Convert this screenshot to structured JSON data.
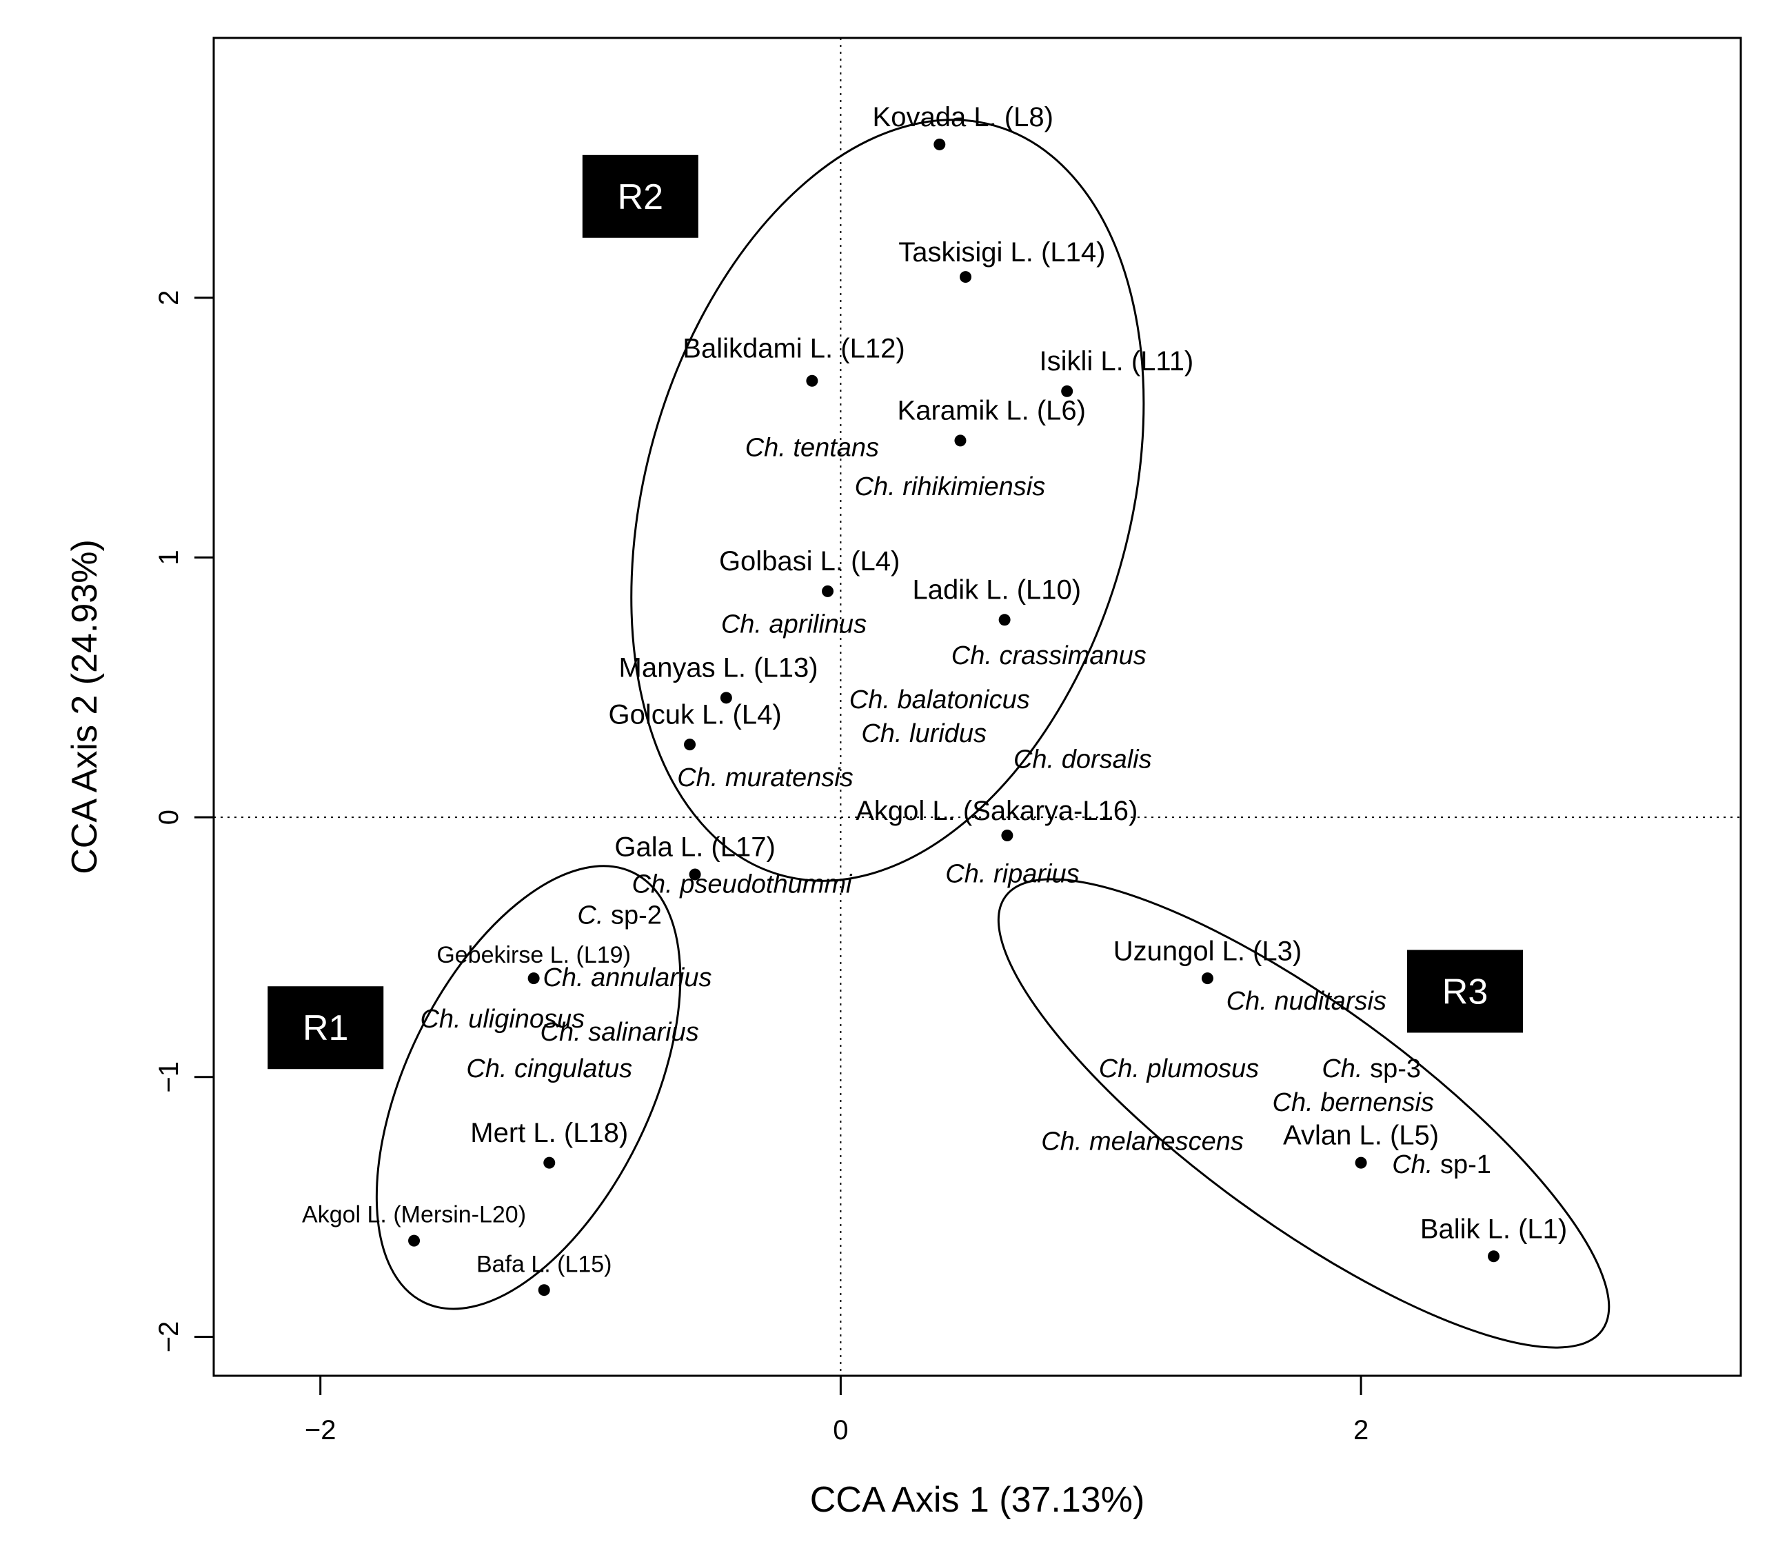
{
  "chart_data": {
    "type": "scatter",
    "xlabel": "CCA Axis 1 (37.13%)",
    "ylabel": "CCA Axis 2 (24.93%)",
    "xlim": [
      -2.41,
      3.46
    ],
    "ylim": [
      -2.15,
      3.0
    ],
    "x_ticks": [
      {
        "v": -2,
        "label": "−2"
      },
      {
        "v": 0,
        "label": "0"
      },
      {
        "v": 2,
        "label": "2"
      }
    ],
    "y_ticks": [
      {
        "v": -2,
        "label": "−2"
      },
      {
        "v": -1,
        "label": "−1"
      },
      {
        "v": 0,
        "label": "0"
      },
      {
        "v": 1,
        "label": "1"
      },
      {
        "v": 2,
        "label": "2"
      }
    ],
    "reference_lines": {
      "x": 0,
      "y": 0,
      "style": "dotted"
    },
    "grid": false,
    "sites": [
      {
        "label": "Kovada L. (L8)",
        "x": 0.38,
        "y": 2.59,
        "lx": 0.47,
        "ly": 2.66,
        "anchor": "middle",
        "small": false
      },
      {
        "label": "Taskisigi L. (L14)",
        "x": 0.48,
        "y": 2.08,
        "lx": 0.62,
        "ly": 2.14,
        "anchor": "middle",
        "small": false
      },
      {
        "label": "Balikdami L. (L12)",
        "x": -0.11,
        "y": 1.68,
        "lx": -0.18,
        "ly": 1.77,
        "anchor": "middle",
        "small": false
      },
      {
        "label": "Isikli L. (L11)",
        "x": 0.87,
        "y": 1.64,
        "lx": 1.06,
        "ly": 1.72,
        "anchor": "middle",
        "small": false
      },
      {
        "label": "Karamik L. (L6)",
        "x": 0.46,
        "y": 1.45,
        "lx": 0.58,
        "ly": 1.53,
        "anchor": "middle",
        "small": false
      },
      {
        "label": "Golbasi L. (L4)",
        "x": -0.05,
        "y": 0.87,
        "lx": -0.12,
        "ly": 0.95,
        "anchor": "middle",
        "small": false
      },
      {
        "label": "Ladik L. (L10)",
        "x": 0.63,
        "y": 0.76,
        "lx": 0.6,
        "ly": 0.84,
        "anchor": "middle",
        "small": false
      },
      {
        "label": "Manyas L. (L13)",
        "x": -0.44,
        "y": 0.46,
        "lx": -0.47,
        "ly": 0.54,
        "anchor": "middle",
        "small": false
      },
      {
        "label": "Golcuk L. (L4)",
        "x": -0.58,
        "y": 0.28,
        "lx": -0.56,
        "ly": 0.36,
        "anchor": "middle",
        "small": false
      },
      {
        "label": "Akgol L. (Sakarya-L16)",
        "x": 0.64,
        "y": -0.07,
        "lx": 0.6,
        "ly": -0.01,
        "anchor": "middle",
        "small": false
      },
      {
        "label": "Gala L. (L17)",
        "x": -0.56,
        "y": -0.22,
        "lx": -0.56,
        "ly": -0.15,
        "anchor": "middle",
        "small": false
      },
      {
        "label": "Uzungol L. (L3)",
        "x": 1.41,
        "y": -0.62,
        "lx": 1.41,
        "ly": -0.55,
        "anchor": "middle",
        "small": false
      },
      {
        "label": "Gebekirse L. (L19)",
        "x": -1.18,
        "y": -0.62,
        "lx": -1.18,
        "ly": -0.56,
        "anchor": "middle",
        "small": true
      },
      {
        "label": "Mert L. (L18)",
        "x": -1.12,
        "y": -1.33,
        "lx": -1.12,
        "ly": -1.25,
        "anchor": "middle",
        "small": false
      },
      {
        "label": "Avlan L. (L5)",
        "x": 2.0,
        "y": -1.33,
        "lx": 2.0,
        "ly": -1.26,
        "anchor": "middle",
        "small": false
      },
      {
        "label": "Akgol L. (Mersin-L20)",
        "x": -1.64,
        "y": -1.63,
        "lx": -1.64,
        "ly": -1.56,
        "anchor": "middle",
        "small": true
      },
      {
        "label": "Balik L. (L1)",
        "x": 2.51,
        "y": -1.69,
        "lx": 2.51,
        "ly": -1.62,
        "anchor": "middle",
        "small": false
      },
      {
        "label": "Bafa L. (L15)",
        "x": -1.14,
        "y": -1.82,
        "lx": -1.14,
        "ly": -1.75,
        "anchor": "middle",
        "small": true
      }
    ],
    "species": [
      {
        "genus": "Ch.",
        "epithet": "tentans",
        "italic_epithet": true,
        "x": -0.11,
        "y": 1.39
      },
      {
        "genus": "Ch.",
        "epithet": "rihikimiensis",
        "italic_epithet": true,
        "x": 0.42,
        "y": 1.24
      },
      {
        "genus": "Ch.",
        "epithet": "aprilinus",
        "italic_epithet": true,
        "x": -0.18,
        "y": 0.71
      },
      {
        "genus": "Ch.",
        "epithet": "crassimanus",
        "italic_epithet": true,
        "x": 0.8,
        "y": 0.59
      },
      {
        "genus": "Ch.",
        "epithet": "balatonicus",
        "italic_epithet": true,
        "x": 0.38,
        "y": 0.42
      },
      {
        "genus": "Ch.",
        "epithet": "luridus",
        "italic_epithet": true,
        "x": 0.32,
        "y": 0.29
      },
      {
        "genus": "Ch.",
        "epithet": "dorsalis",
        "italic_epithet": true,
        "x": 0.93,
        "y": 0.19
      },
      {
        "genus": "Ch.",
        "epithet": "muratensis",
        "italic_epithet": true,
        "x": -0.29,
        "y": 0.12
      },
      {
        "genus": "Ch.",
        "epithet": "riparius",
        "italic_epithet": true,
        "x": 0.66,
        "y": -0.25
      },
      {
        "genus": "Ch.",
        "epithet": "pseudothummi",
        "italic_epithet": true,
        "x": -0.38,
        "y": -0.29
      },
      {
        "genus": "C.",
        "epithet": "sp-2",
        "italic_epithet": false,
        "x": -0.85,
        "y": -0.41
      },
      {
        "genus": "Ch.",
        "epithet": "annularius",
        "italic_epithet": true,
        "x": -0.82,
        "y": -0.65
      },
      {
        "genus": "Ch.",
        "epithet": "nuditarsis",
        "italic_epithet": true,
        "x": 1.79,
        "y": -0.74
      },
      {
        "genus": "Ch.",
        "epithet": "uliginosus",
        "italic_epithet": true,
        "x": -1.3,
        "y": -0.81
      },
      {
        "genus": "Ch.",
        "epithet": "salinarius",
        "italic_epithet": true,
        "x": -0.85,
        "y": -0.86
      },
      {
        "genus": "Ch.",
        "epithet": "cingulatus",
        "italic_epithet": true,
        "x": -1.12,
        "y": -1.0
      },
      {
        "genus": "Ch.",
        "epithet": "plumosus",
        "italic_epithet": true,
        "x": 1.3,
        "y": -1.0
      },
      {
        "genus": "Ch.",
        "epithet": "sp-3",
        "italic_epithet": false,
        "x": 2.04,
        "y": -1.0
      },
      {
        "genus": "Ch.",
        "epithet": "bernensis",
        "italic_epithet": true,
        "x": 1.97,
        "y": -1.13
      },
      {
        "genus": "Ch.",
        "epithet": "melanescens",
        "italic_epithet": true,
        "x": 1.16,
        "y": -1.28
      },
      {
        "genus": "Ch.",
        "epithet": "sp-1",
        "italic_epithet": false,
        "x": 2.31,
        "y": -1.37
      }
    ],
    "regions": [
      {
        "label": "R1",
        "bx": -1.98,
        "by": -0.81,
        "ellipse": {
          "cx": -1.2,
          "cy": -1.04,
          "rx": 0.47,
          "ry": 0.92,
          "rot_deg": 26
        }
      },
      {
        "label": "R2",
        "bx": -0.77,
        "by": 2.39,
        "ellipse": {
          "cx": 0.18,
          "cy": 1.22,
          "rx": 0.93,
          "ry": 1.5,
          "rot_deg": 16
        }
      },
      {
        "label": "R3",
        "bx": 2.4,
        "by": -0.67,
        "ellipse": {
          "cx": 1.78,
          "cy": -1.14,
          "rx": 0.42,
          "ry": 1.42,
          "rot_deg": 126
        }
      }
    ]
  }
}
